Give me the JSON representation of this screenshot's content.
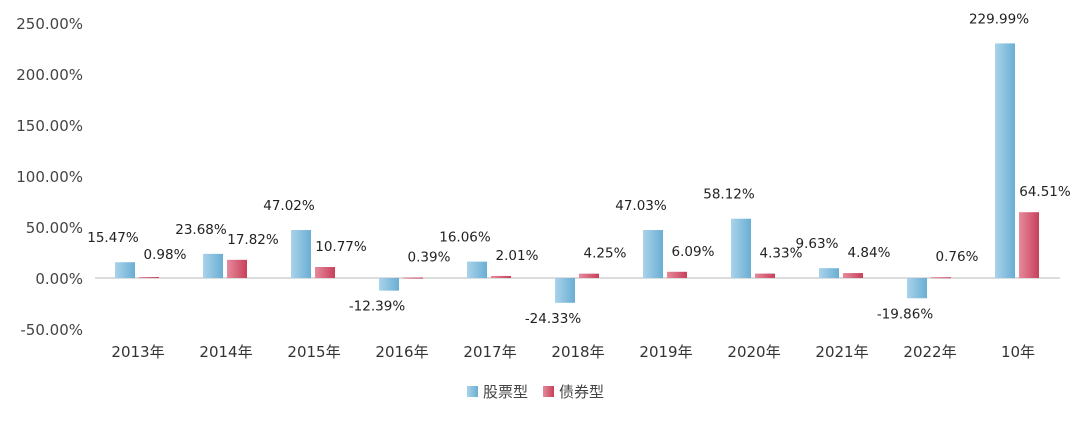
{
  "chart_data": {
    "type": "bar",
    "categories": [
      "2013年",
      "2014年",
      "2015年",
      "2016年",
      "2017年",
      "2018年",
      "2019年",
      "2020年",
      "2021年",
      "2022年",
      "10年"
    ],
    "series": [
      {
        "name": "股票型",
        "color": "#7fbcdc",
        "values": [
          15.47,
          23.68,
          47.02,
          -12.39,
          16.06,
          -24.33,
          47.03,
          58.12,
          9.63,
          -19.86,
          229.99
        ],
        "labels": [
          "15.47%",
          "23.68%",
          "47.02%",
          "-12.39%",
          "16.06%",
          "-24.33%",
          "47.03%",
          "58.12%",
          "9.63%",
          "-19.86%",
          "229.99%"
        ]
      },
      {
        "name": "债券型",
        "color": "#d2526a",
        "values": [
          0.98,
          17.82,
          10.77,
          0.39,
          2.01,
          4.25,
          6.09,
          4.33,
          4.84,
          0.76,
          64.51
        ],
        "labels": [
          "0.98%",
          "17.82%",
          "10.77%",
          "0.39%",
          "2.01%",
          "4.25%",
          "6.09%",
          "4.33%",
          "4.84%",
          "0.76%",
          "64.51%"
        ]
      }
    ],
    "ylim": [
      -50,
      250
    ],
    "yticks": [
      "250.00%",
      "200.00%",
      "150.00%",
      "100.00%",
      "50.00%",
      "0.00%",
      "-50.00%"
    ],
    "ytick_values": [
      250,
      200,
      150,
      100,
      50,
      0,
      -50
    ],
    "grid": false,
    "legend": "bottom",
    "title": "",
    "xlabel": "",
    "ylabel": ""
  }
}
